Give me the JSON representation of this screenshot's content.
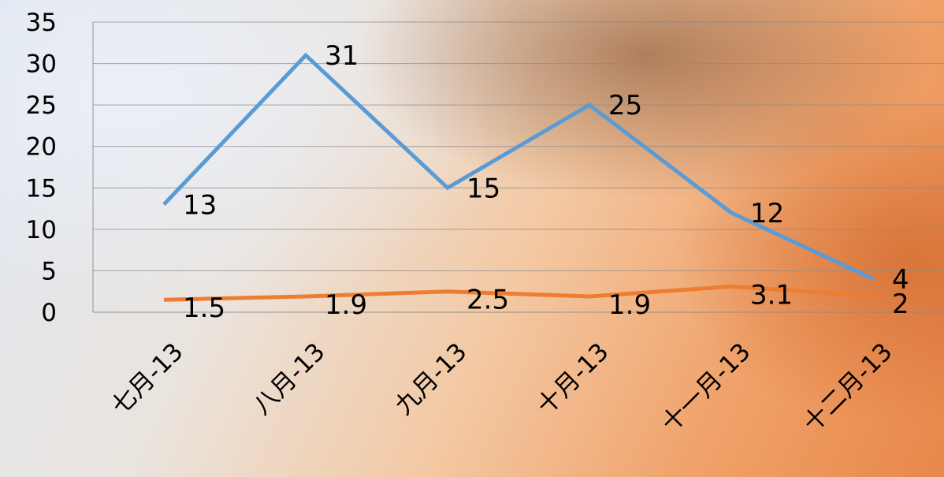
{
  "chart_data": {
    "type": "line",
    "categories": [
      "七月-13",
      "八月-13",
      "九月-13",
      "十月-13",
      "十一月-13",
      "十二月-13"
    ],
    "series": [
      {
        "values": [
          13,
          31,
          15,
          25,
          12,
          4
        ],
        "color": "#5b9bd5"
      },
      {
        "values": [
          1.5,
          1.9,
          2.5,
          1.9,
          3.1,
          2
        ],
        "color": "#ed7d31"
      }
    ],
    "ylim": [
      0,
      35
    ],
    "yticks": [
      0,
      5,
      10,
      15,
      20,
      25,
      30,
      35
    ],
    "title": "",
    "xlabel": "",
    "ylabel": "",
    "grid": true,
    "data_labels": true,
    "legend": "none"
  }
}
